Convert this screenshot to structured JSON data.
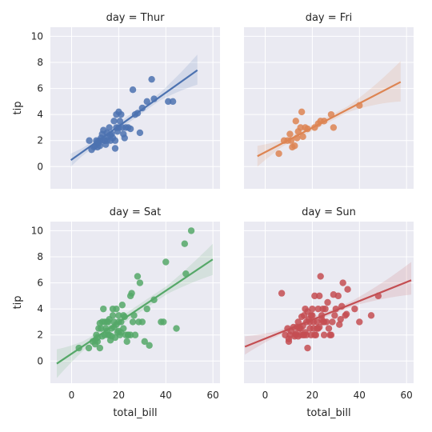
{
  "chart_data": {
    "type": "scatter",
    "x_label": "total_bill",
    "y_label": "tip",
    "x_ticks": [
      0,
      20,
      40,
      60
    ],
    "y_ticks": [
      0,
      2,
      4,
      6,
      8,
      10
    ],
    "xlim": [
      -9,
      63
    ],
    "ylim": [
      -1.7,
      10.7
    ],
    "grid": true,
    "panels": [
      {
        "title": "day = Thur",
        "color": "#4c72b0",
        "fit": {
          "x": [
            -0.3,
            53.4
          ],
          "y": [
            0.5,
            7.4
          ]
        },
        "ci_lower_end": {
          "start": 1.0,
          "end": 6.3
        },
        "ci_upper_end": {
          "start": 0.0,
          "end": 8.6
        },
        "points": [
          [
            7.5,
            2.0
          ],
          [
            8.5,
            1.3
          ],
          [
            9.5,
            1.5
          ],
          [
            10.0,
            1.6
          ],
          [
            10.5,
            2.0
          ],
          [
            11.0,
            1.5
          ],
          [
            11.5,
            1.8
          ],
          [
            12.0,
            2.0
          ],
          [
            12.5,
            2.2
          ],
          [
            13.0,
            2.5
          ],
          [
            13.5,
            2.8
          ],
          [
            14.0,
            2.0
          ],
          [
            14.5,
            1.7
          ],
          [
            15.0,
            2.0
          ],
          [
            15.5,
            2.3
          ],
          [
            16.0,
            3.0
          ],
          [
            16.5,
            2.0
          ],
          [
            17.0,
            2.5
          ],
          [
            17.5,
            2.2
          ],
          [
            18.0,
            3.5
          ],
          [
            18.5,
            2.0
          ],
          [
            19.0,
            4.0
          ],
          [
            19.0,
            3.0
          ],
          [
            19.5,
            2.7
          ],
          [
            20.0,
            3.0
          ],
          [
            20.5,
            3.5
          ],
          [
            21.0,
            4.0
          ],
          [
            21.5,
            3.0
          ],
          [
            22.0,
            2.5
          ],
          [
            23.0,
            3.0
          ],
          [
            24.0,
            3.0
          ],
          [
            25.0,
            2.9
          ],
          [
            26.0,
            5.9
          ],
          [
            27.0,
            4.0
          ],
          [
            28.0,
            4.1
          ],
          [
            29.0,
            2.6
          ],
          [
            30.0,
            4.5
          ],
          [
            32.0,
            5.0
          ],
          [
            34.0,
            6.7
          ],
          [
            35.0,
            5.2
          ],
          [
            41.0,
            5.0
          ],
          [
            43.0,
            5.0
          ],
          [
            18.5,
            1.4
          ],
          [
            12.0,
            1.6
          ],
          [
            15.0,
            2.6
          ],
          [
            20.0,
            4.2
          ],
          [
            22.5,
            2.2
          ],
          [
            14.0,
            2.0
          ],
          [
            16.5,
            2.4
          ],
          [
            11.0,
            1.9
          ]
        ]
      },
      {
        "title": "day = Fri",
        "color": "#dd8452",
        "fit": {
          "x": [
            -3.3,
            57.5
          ],
          "y": [
            0.8,
            6.5
          ]
        },
        "ci_lower_end": {
          "start": 1.6,
          "end": 5.0
        },
        "ci_upper_end": {
          "start": 0.0,
          "end": 8.1
        },
        "points": [
          [
            5.8,
            1.0
          ],
          [
            8.0,
            2.0
          ],
          [
            9.5,
            2.0
          ],
          [
            10.5,
            2.5
          ],
          [
            11.5,
            1.5
          ],
          [
            12.5,
            1.6
          ],
          [
            13.0,
            3.5
          ],
          [
            14.0,
            2.7
          ],
          [
            15.0,
            3.0
          ],
          [
            15.5,
            4.2
          ],
          [
            16.0,
            2.3
          ],
          [
            17.0,
            3.0
          ],
          [
            18.0,
            2.9
          ],
          [
            21.0,
            3.0
          ],
          [
            22.5,
            3.3
          ],
          [
            23.5,
            3.5
          ],
          [
            25.0,
            3.5
          ],
          [
            28.0,
            4.0
          ],
          [
            29.0,
            3.0
          ],
          [
            40.0,
            4.7
          ],
          [
            13.5,
            2.2
          ],
          [
            11.0,
            2.0
          ]
        ]
      },
      {
        "title": "day = Sat",
        "color": "#55a868",
        "fit": {
          "x": [
            -6.3,
            59.9
          ],
          "y": [
            -0.2,
            7.8
          ]
        },
        "ci_lower_end": {
          "start": 0.9,
          "end": 6.6
        },
        "ci_upper_end": {
          "start": -1.3,
          "end": 9.0
        },
        "points": [
          [
            3.1,
            1.0
          ],
          [
            7.3,
            1.0
          ],
          [
            9.0,
            1.5
          ],
          [
            10.0,
            1.6
          ],
          [
            10.5,
            2.0
          ],
          [
            11.0,
            1.5
          ],
          [
            11.5,
            2.5
          ],
          [
            12.0,
            1.0
          ],
          [
            12.5,
            2.5
          ],
          [
            13.0,
            3.0
          ],
          [
            13.5,
            4.0
          ],
          [
            14.0,
            2.0
          ],
          [
            14.5,
            2.5
          ],
          [
            15.0,
            3.0
          ],
          [
            15.5,
            2.0
          ],
          [
            16.0,
            3.2
          ],
          [
            16.5,
            1.6
          ],
          [
            17.0,
            2.5
          ],
          [
            17.5,
            4.0
          ],
          [
            18.0,
            3.0
          ],
          [
            18.5,
            1.8
          ],
          [
            19.0,
            4.0
          ],
          [
            19.5,
            2.2
          ],
          [
            20.0,
            3.5
          ],
          [
            20.5,
            2.0
          ],
          [
            21.0,
            3.0
          ],
          [
            21.5,
            4.3
          ],
          [
            22.0,
            2.5
          ],
          [
            22.5,
            3.4
          ],
          [
            23.0,
            2.0
          ],
          [
            23.5,
            1.5
          ],
          [
            24.0,
            2.0
          ],
          [
            25.0,
            5.0
          ],
          [
            25.5,
            5.2
          ],
          [
            26.0,
            3.0
          ],
          [
            27.0,
            2.0
          ],
          [
            28.0,
            6.5
          ],
          [
            29.0,
            6.0
          ],
          [
            30.0,
            3.0
          ],
          [
            31.0,
            1.5
          ],
          [
            32.0,
            4.0
          ],
          [
            33.0,
            1.2
          ],
          [
            35.0,
            4.7
          ],
          [
            38.0,
            3.0
          ],
          [
            39.0,
            3.0
          ],
          [
            40.0,
            7.6
          ],
          [
            44.5,
            2.5
          ],
          [
            48.0,
            9.0
          ],
          [
            48.5,
            6.7
          ],
          [
            50.8,
            10.0
          ],
          [
            12.0,
            2.9
          ],
          [
            15.0,
            2.3
          ],
          [
            17.0,
            1.9
          ],
          [
            20.0,
            2.3
          ],
          [
            14.0,
            3.0
          ],
          [
            19.0,
            2.8
          ],
          [
            24.0,
            2.0
          ],
          [
            18.0,
            2.6
          ],
          [
            13.0,
            1.9
          ],
          [
            22.0,
            3.5
          ],
          [
            16.0,
            2.0
          ],
          [
            11.0,
            1.8
          ],
          [
            28.5,
            3.0
          ],
          [
            21.0,
            2.2
          ],
          [
            26.5,
            3.5
          ],
          [
            20.0,
            3.0
          ],
          [
            15.5,
            3.0
          ],
          [
            10.0,
            1.3
          ],
          [
            25.0,
            2.0
          ],
          [
            17.5,
            3.5
          ]
        ]
      },
      {
        "title": "day = Sun",
        "color": "#c44e52",
        "fit": {
          "x": [
            -8.6,
            62.0
          ],
          "y": [
            1.1,
            6.2
          ]
        },
        "ci_lower_end": {
          "start": 0.5,
          "end": 5.1
        },
        "ci_upper_end": {
          "start": 1.9,
          "end": 7.6
        },
        "points": [
          [
            7.0,
            5.2
          ],
          [
            8.5,
            2.0
          ],
          [
            9.5,
            2.5
          ],
          [
            10.0,
            1.7
          ],
          [
            10.5,
            2.0
          ],
          [
            11.0,
            2.3
          ],
          [
            12.0,
            2.6
          ],
          [
            13.0,
            2.0
          ],
          [
            13.5,
            2.6
          ],
          [
            14.0,
            3.0
          ],
          [
            14.5,
            2.5
          ],
          [
            15.0,
            2.0
          ],
          [
            15.5,
            3.4
          ],
          [
            16.0,
            2.7
          ],
          [
            16.5,
            3.5
          ],
          [
            17.0,
            4.0
          ],
          [
            17.5,
            2.0
          ],
          [
            18.0,
            1.0
          ],
          [
            18.5,
            3.2
          ],
          [
            19.0,
            3.0
          ],
          [
            19.5,
            2.0
          ],
          [
            20.0,
            3.5
          ],
          [
            20.5,
            2.5
          ],
          [
            21.0,
            5.0
          ],
          [
            21.5,
            2.0
          ],
          [
            22.0,
            3.0
          ],
          [
            22.5,
            4.0
          ],
          [
            23.0,
            5.0
          ],
          [
            23.5,
            6.5
          ],
          [
            24.0,
            3.5
          ],
          [
            24.5,
            4.0
          ],
          [
            25.0,
            2.0
          ],
          [
            25.5,
            4.0
          ],
          [
            26.0,
            3.0
          ],
          [
            27.0,
            2.5
          ],
          [
            28.0,
            2.0
          ],
          [
            29.0,
            5.1
          ],
          [
            30.0,
            4.0
          ],
          [
            31.0,
            5.0
          ],
          [
            32.0,
            3.2
          ],
          [
            33.0,
            6.0
          ],
          [
            34.0,
            3.5
          ],
          [
            35.0,
            5.5
          ],
          [
            38.0,
            4.0
          ],
          [
            40.0,
            3.0
          ],
          [
            45.0,
            3.5
          ],
          [
            48.0,
            5.0
          ],
          [
            12.5,
            1.9
          ],
          [
            16.0,
            2.0
          ],
          [
            17.5,
            3.0
          ],
          [
            19.0,
            2.5
          ],
          [
            20.5,
            3.0
          ],
          [
            22.0,
            2.5
          ],
          [
            24.0,
            3.2
          ],
          [
            26.5,
            4.5
          ],
          [
            28.5,
            3.0
          ],
          [
            15.0,
            2.5
          ],
          [
            18.0,
            3.8
          ],
          [
            21.0,
            2.0
          ],
          [
            23.0,
            2.6
          ],
          [
            10.0,
            1.5
          ],
          [
            14.0,
            1.9
          ],
          [
            27.5,
            2.0
          ],
          [
            31.5,
            2.8
          ],
          [
            34.5,
            3.6
          ],
          [
            13.0,
            2.1
          ],
          [
            17.0,
            2.2
          ],
          [
            19.5,
            3.5
          ],
          [
            22.5,
            2.5
          ],
          [
            25.0,
            3.0
          ],
          [
            29.5,
            3.5
          ],
          [
            32.5,
            4.2
          ],
          [
            20.0,
            4.0
          ],
          [
            16.5,
            2.0
          ],
          [
            24.5,
            3.0
          ]
        ]
      }
    ]
  }
}
